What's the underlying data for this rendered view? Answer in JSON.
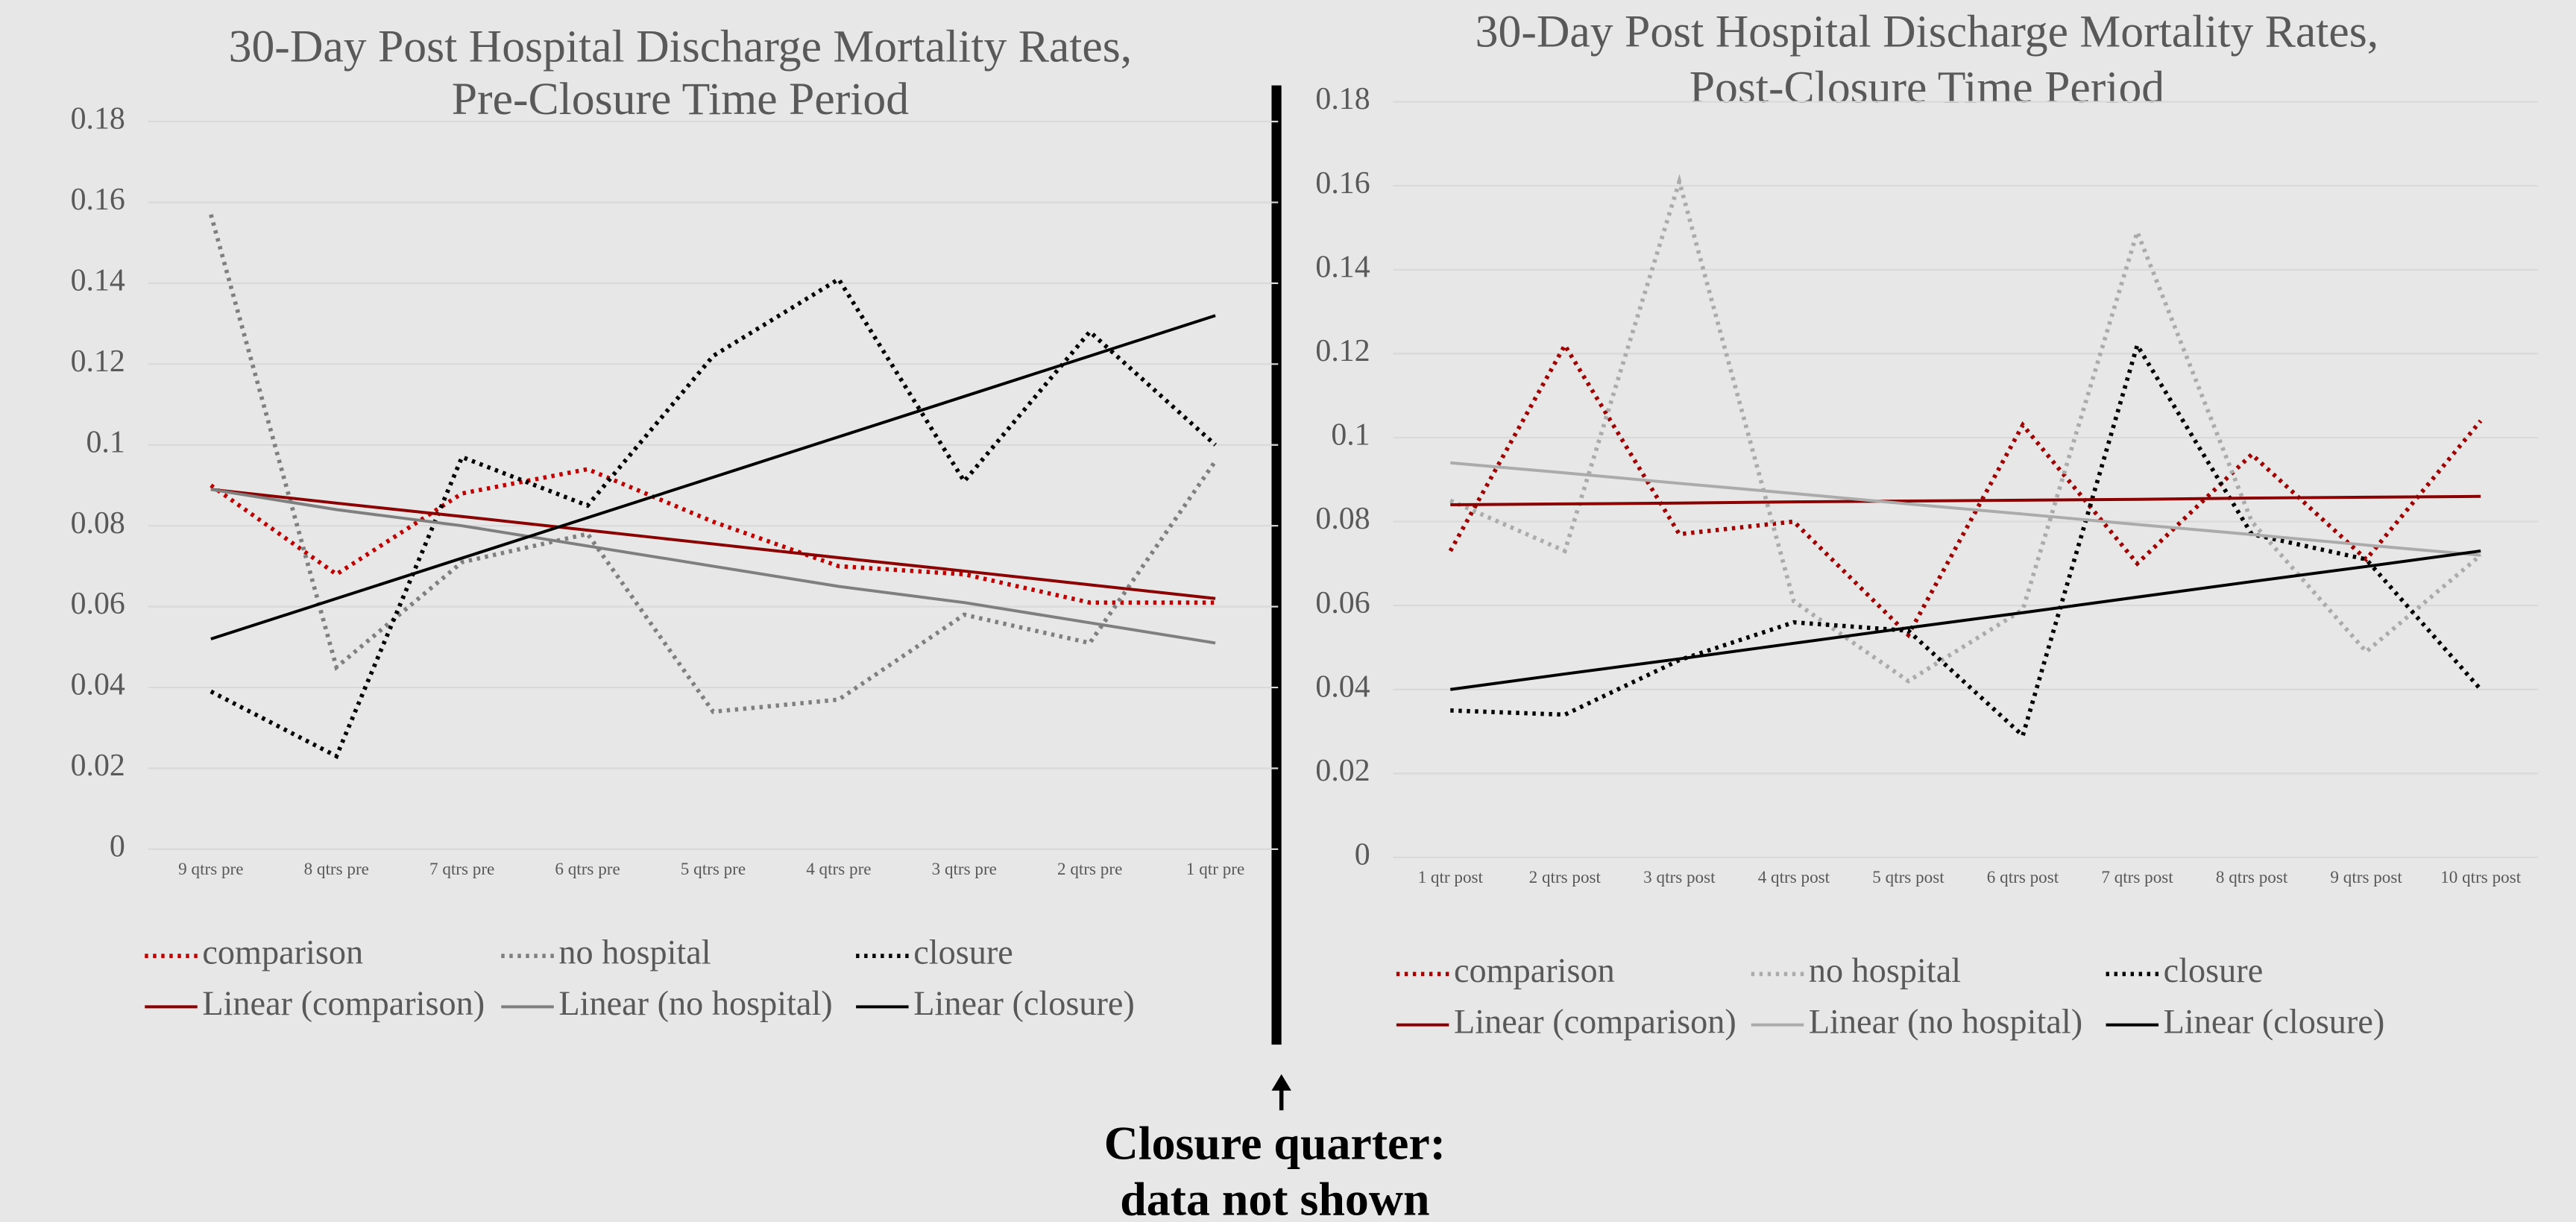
{
  "chart_data": [
    {
      "type": "line",
      "title": [
        "30-Day Post Hospital Discharge Mortality Rates,",
        "Pre-Closure Time Period"
      ],
      "categories": [
        "9 qtrs pre",
        "8 qtrs pre",
        "7 qtrs pre",
        "6 qtrs pre",
        "5 qtrs pre",
        "4 qtrs pre",
        "3 qtrs pre",
        "2 qtrs pre",
        "1 qtr pre"
      ],
      "ylim": [
        0,
        0.18
      ],
      "yticks": [
        0,
        0.02,
        0.04,
        0.06,
        0.08,
        0.1,
        0.12,
        0.14,
        0.16,
        0.18
      ],
      "grid": true,
      "legend": "bottom",
      "series": [
        {
          "name": "comparison",
          "color": "#c00000",
          "style": "dotted",
          "values": [
            0.09,
            0.068,
            0.088,
            0.094,
            0.081,
            0.07,
            0.068,
            0.061,
            0.061
          ]
        },
        {
          "name": "no hospital",
          "color": "#7f7f7f",
          "style": "dotted",
          "values": [
            0.157,
            0.045,
            0.071,
            0.078,
            0.034,
            0.037,
            0.058,
            0.051,
            0.096
          ]
        },
        {
          "name": "closure",
          "color": "#000000",
          "style": "dotted",
          "values": [
            0.039,
            0.023,
            0.097,
            0.085,
            0.122,
            0.141,
            0.091,
            0.128,
            0.1
          ]
        },
        {
          "name": "Linear (comparison)",
          "color": "#8b0000",
          "style": "solid",
          "values": [
            0.089,
            0.0856,
            0.0823,
            0.0789,
            0.0755,
            0.0721,
            0.0688,
            0.0654,
            0.062
          ]
        },
        {
          "name": "Linear (no hospital)",
          "color": "#7f7f7f",
          "style": "solid",
          "values": [
            0.089,
            0.084,
            0.08,
            0.075,
            0.07,
            0.065,
            0.061,
            0.056,
            0.051
          ]
        },
        {
          "name": "Linear (closure)",
          "color": "#000000",
          "style": "solid",
          "values": [
            0.052,
            0.062,
            0.072,
            0.082,
            0.092,
            0.102,
            0.112,
            0.122,
            0.132
          ]
        }
      ]
    },
    {
      "type": "line",
      "title": [
        "30-Day Post Hospital Discharge Mortality Rates,",
        "Post-Closure Time Period"
      ],
      "categories": [
        "1 qtr post",
        "2 qtrs post",
        "3 qtrs post",
        "4 qtrs post",
        "5 qtrs post",
        "6 qtrs post",
        "7 qtrs post",
        "8 qtrs post",
        "9 qtrs post",
        "10 qtrs post"
      ],
      "ylim": [
        0,
        0.18
      ],
      "yticks": [
        0,
        0.02,
        0.04,
        0.06,
        0.08,
        0.1,
        0.12,
        0.14,
        0.16,
        0.18
      ],
      "grid": true,
      "legend": "bottom",
      "series": [
        {
          "name": "comparison",
          "color": "#a00000",
          "style": "dotted",
          "values": [
            0.073,
            0.122,
            0.077,
            0.08,
            0.053,
            0.103,
            0.07,
            0.096,
            0.071,
            0.104
          ]
        },
        {
          "name": "no hospital",
          "color": "#ababab",
          "style": "dotted",
          "values": [
            0.085,
            0.073,
            0.161,
            0.061,
            0.042,
            0.059,
            0.149,
            0.08,
            0.049,
            0.072
          ]
        },
        {
          "name": "closure",
          "color": "#000000",
          "style": "dotted",
          "values": [
            0.035,
            0.034,
            0.047,
            0.056,
            0.054,
            0.029,
            0.122,
            0.077,
            0.071,
            0.04
          ]
        },
        {
          "name": "Linear (comparison)",
          "color": "#8b0000",
          "style": "solid",
          "values": [
            0.084,
            0.0842,
            0.0844,
            0.0847,
            0.0849,
            0.0851,
            0.0853,
            0.0856,
            0.0858,
            0.086
          ]
        },
        {
          "name": "Linear (no hospital)",
          "color": "#ababab",
          "style": "solid",
          "values": [
            0.094,
            0.0916,
            0.0891,
            0.0867,
            0.0842,
            0.0818,
            0.0793,
            0.0769,
            0.0744,
            0.072
          ]
        },
        {
          "name": "Linear (closure)",
          "color": "#000000",
          "style": "solid",
          "values": [
            0.04,
            0.0437,
            0.0473,
            0.051,
            0.0547,
            0.0583,
            0.062,
            0.0657,
            0.0693,
            0.073
          ]
        }
      ]
    }
  ],
  "annotation": [
    "Closure quarter:",
    "data not shown"
  ]
}
